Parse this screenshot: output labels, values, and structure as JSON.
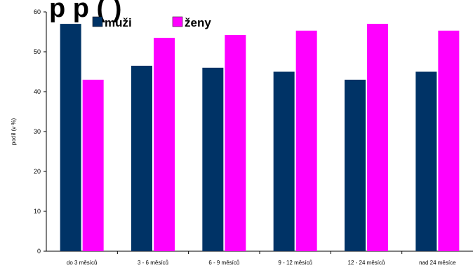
{
  "chart_data": {
    "type": "bar",
    "title_fragment": "p   p  (              )",
    "ylabel": "podíl (v %)",
    "ylim": [
      0,
      60
    ],
    "yticks": [
      0,
      10,
      20,
      30,
      40,
      50,
      60
    ],
    "grid": false,
    "legend_position": "top-left",
    "categories": [
      "do 3 měsíců",
      "3 - 6 měsíců",
      "6 - 9 měsíců",
      "9 - 12 měsíců",
      "12 - 24 měsíců",
      "nad 24 měsíce"
    ],
    "series": [
      {
        "name": "muži",
        "color": "#003366",
        "values": [
          57,
          46.5,
          46,
          45,
          43,
          45
        ]
      },
      {
        "name": "ženy",
        "color": "#FF00FF",
        "values": [
          43,
          53.5,
          54.2,
          55.3,
          57,
          55.3
        ]
      }
    ]
  }
}
